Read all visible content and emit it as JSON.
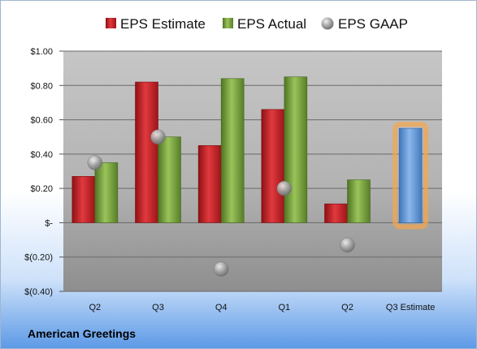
{
  "company": "American Greetings",
  "colors": {
    "estimate": "#c81e22",
    "actual": "#76a13a",
    "gaap": "#9a9a9a",
    "highlight_bar": "#5b93d6",
    "highlight_glow": "#f7a54a"
  },
  "chart_data": {
    "type": "bar",
    "categories": [
      "Q2",
      "Q3",
      "Q4",
      "Q1",
      "Q2",
      "Q3 Estimate"
    ],
    "series": [
      {
        "name": "EPS Estimate",
        "type": "bar",
        "values": [
          0.27,
          0.82,
          0.45,
          0.66,
          0.11,
          null
        ]
      },
      {
        "name": "EPS Actual",
        "type": "bar",
        "values": [
          0.35,
          0.5,
          0.84,
          0.85,
          0.25,
          null
        ]
      },
      {
        "name": "EPS GAAP",
        "type": "scatter",
        "values": [
          0.35,
          0.5,
          -0.27,
          0.2,
          -0.13,
          null
        ]
      }
    ],
    "highlight": {
      "category": "Q3 Estimate",
      "value": 0.55
    },
    "ylim": [
      -0.4,
      1.0
    ],
    "yticks": [
      1.0,
      0.8,
      0.6,
      0.4,
      0.2,
      0,
      -0.2,
      -0.4
    ],
    "ytick_labels": [
      "$1.00",
      "$0.80",
      "$0.60",
      "$0.40",
      "$0.20",
      "$-",
      "$(0.20)",
      "$(0.40)"
    ],
    "grid": true,
    "legend_position": "top"
  }
}
